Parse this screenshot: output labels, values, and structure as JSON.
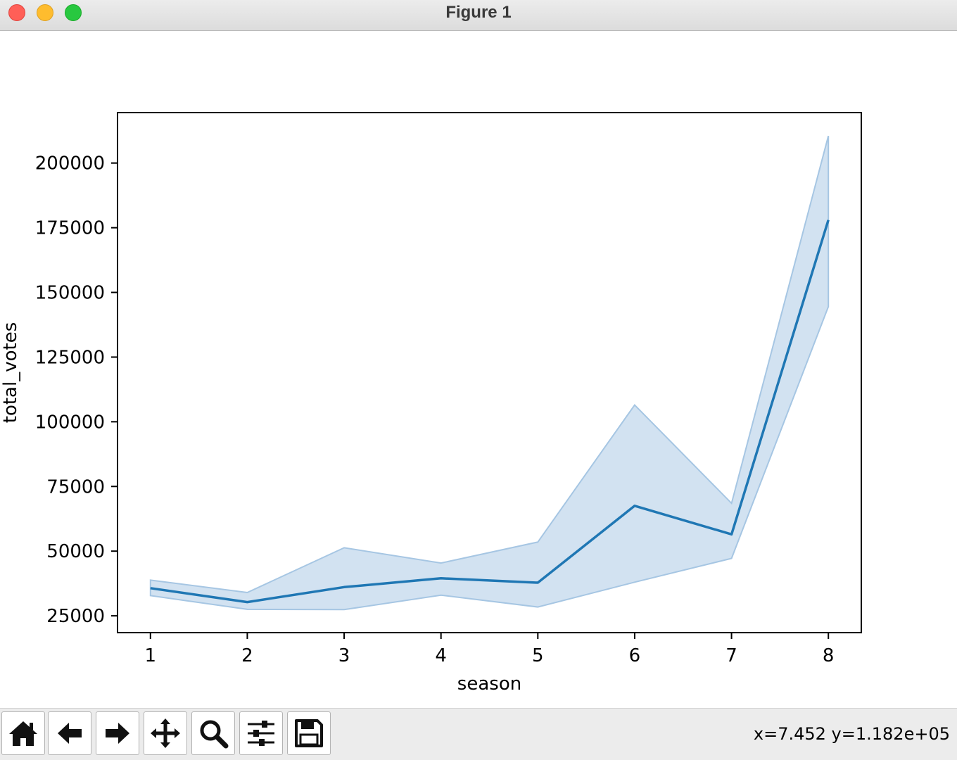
{
  "window": {
    "title": "Figure 1"
  },
  "toolbar": {
    "buttons": [
      {
        "name": "home",
        "icon": "home-icon"
      },
      {
        "name": "back",
        "icon": "arrow-left-icon"
      },
      {
        "name": "forward",
        "icon": "arrow-right-icon"
      },
      {
        "name": "pan",
        "icon": "move-icon"
      },
      {
        "name": "zoom",
        "icon": "magnifier-icon"
      },
      {
        "name": "configure-subplots",
        "icon": "sliders-icon"
      },
      {
        "name": "save",
        "icon": "floppy-disk-icon"
      }
    ],
    "coords": "x=7.452 y=1.182e+05"
  },
  "chart_data": {
    "type": "line",
    "title": "",
    "xlabel": "season",
    "ylabel": "total_votes",
    "x": [
      1,
      2,
      3,
      4,
      5,
      6,
      7,
      8
    ],
    "series": [
      {
        "values": [
          35700,
          30300,
          36100,
          39500,
          37800,
          67500,
          56500,
          178000
        ],
        "ci_upper": [
          38800,
          34000,
          51300,
          45400,
          53500,
          106500,
          68500,
          210500
        ],
        "ci_lower": [
          32800,
          27500,
          27400,
          33000,
          28400,
          38000,
          47200,
          144500
        ],
        "color": "#1f77b4",
        "band_color": "#a6c6e3"
      }
    ],
    "x_ticks": [
      1,
      2,
      3,
      4,
      5,
      6,
      7,
      8
    ],
    "y_ticks": [
      25000,
      50000,
      75000,
      100000,
      125000,
      150000,
      175000,
      200000
    ],
    "xlim": [
      0.66,
      8.34
    ],
    "ylim": [
      18500,
      219500
    ],
    "grid": false
  }
}
